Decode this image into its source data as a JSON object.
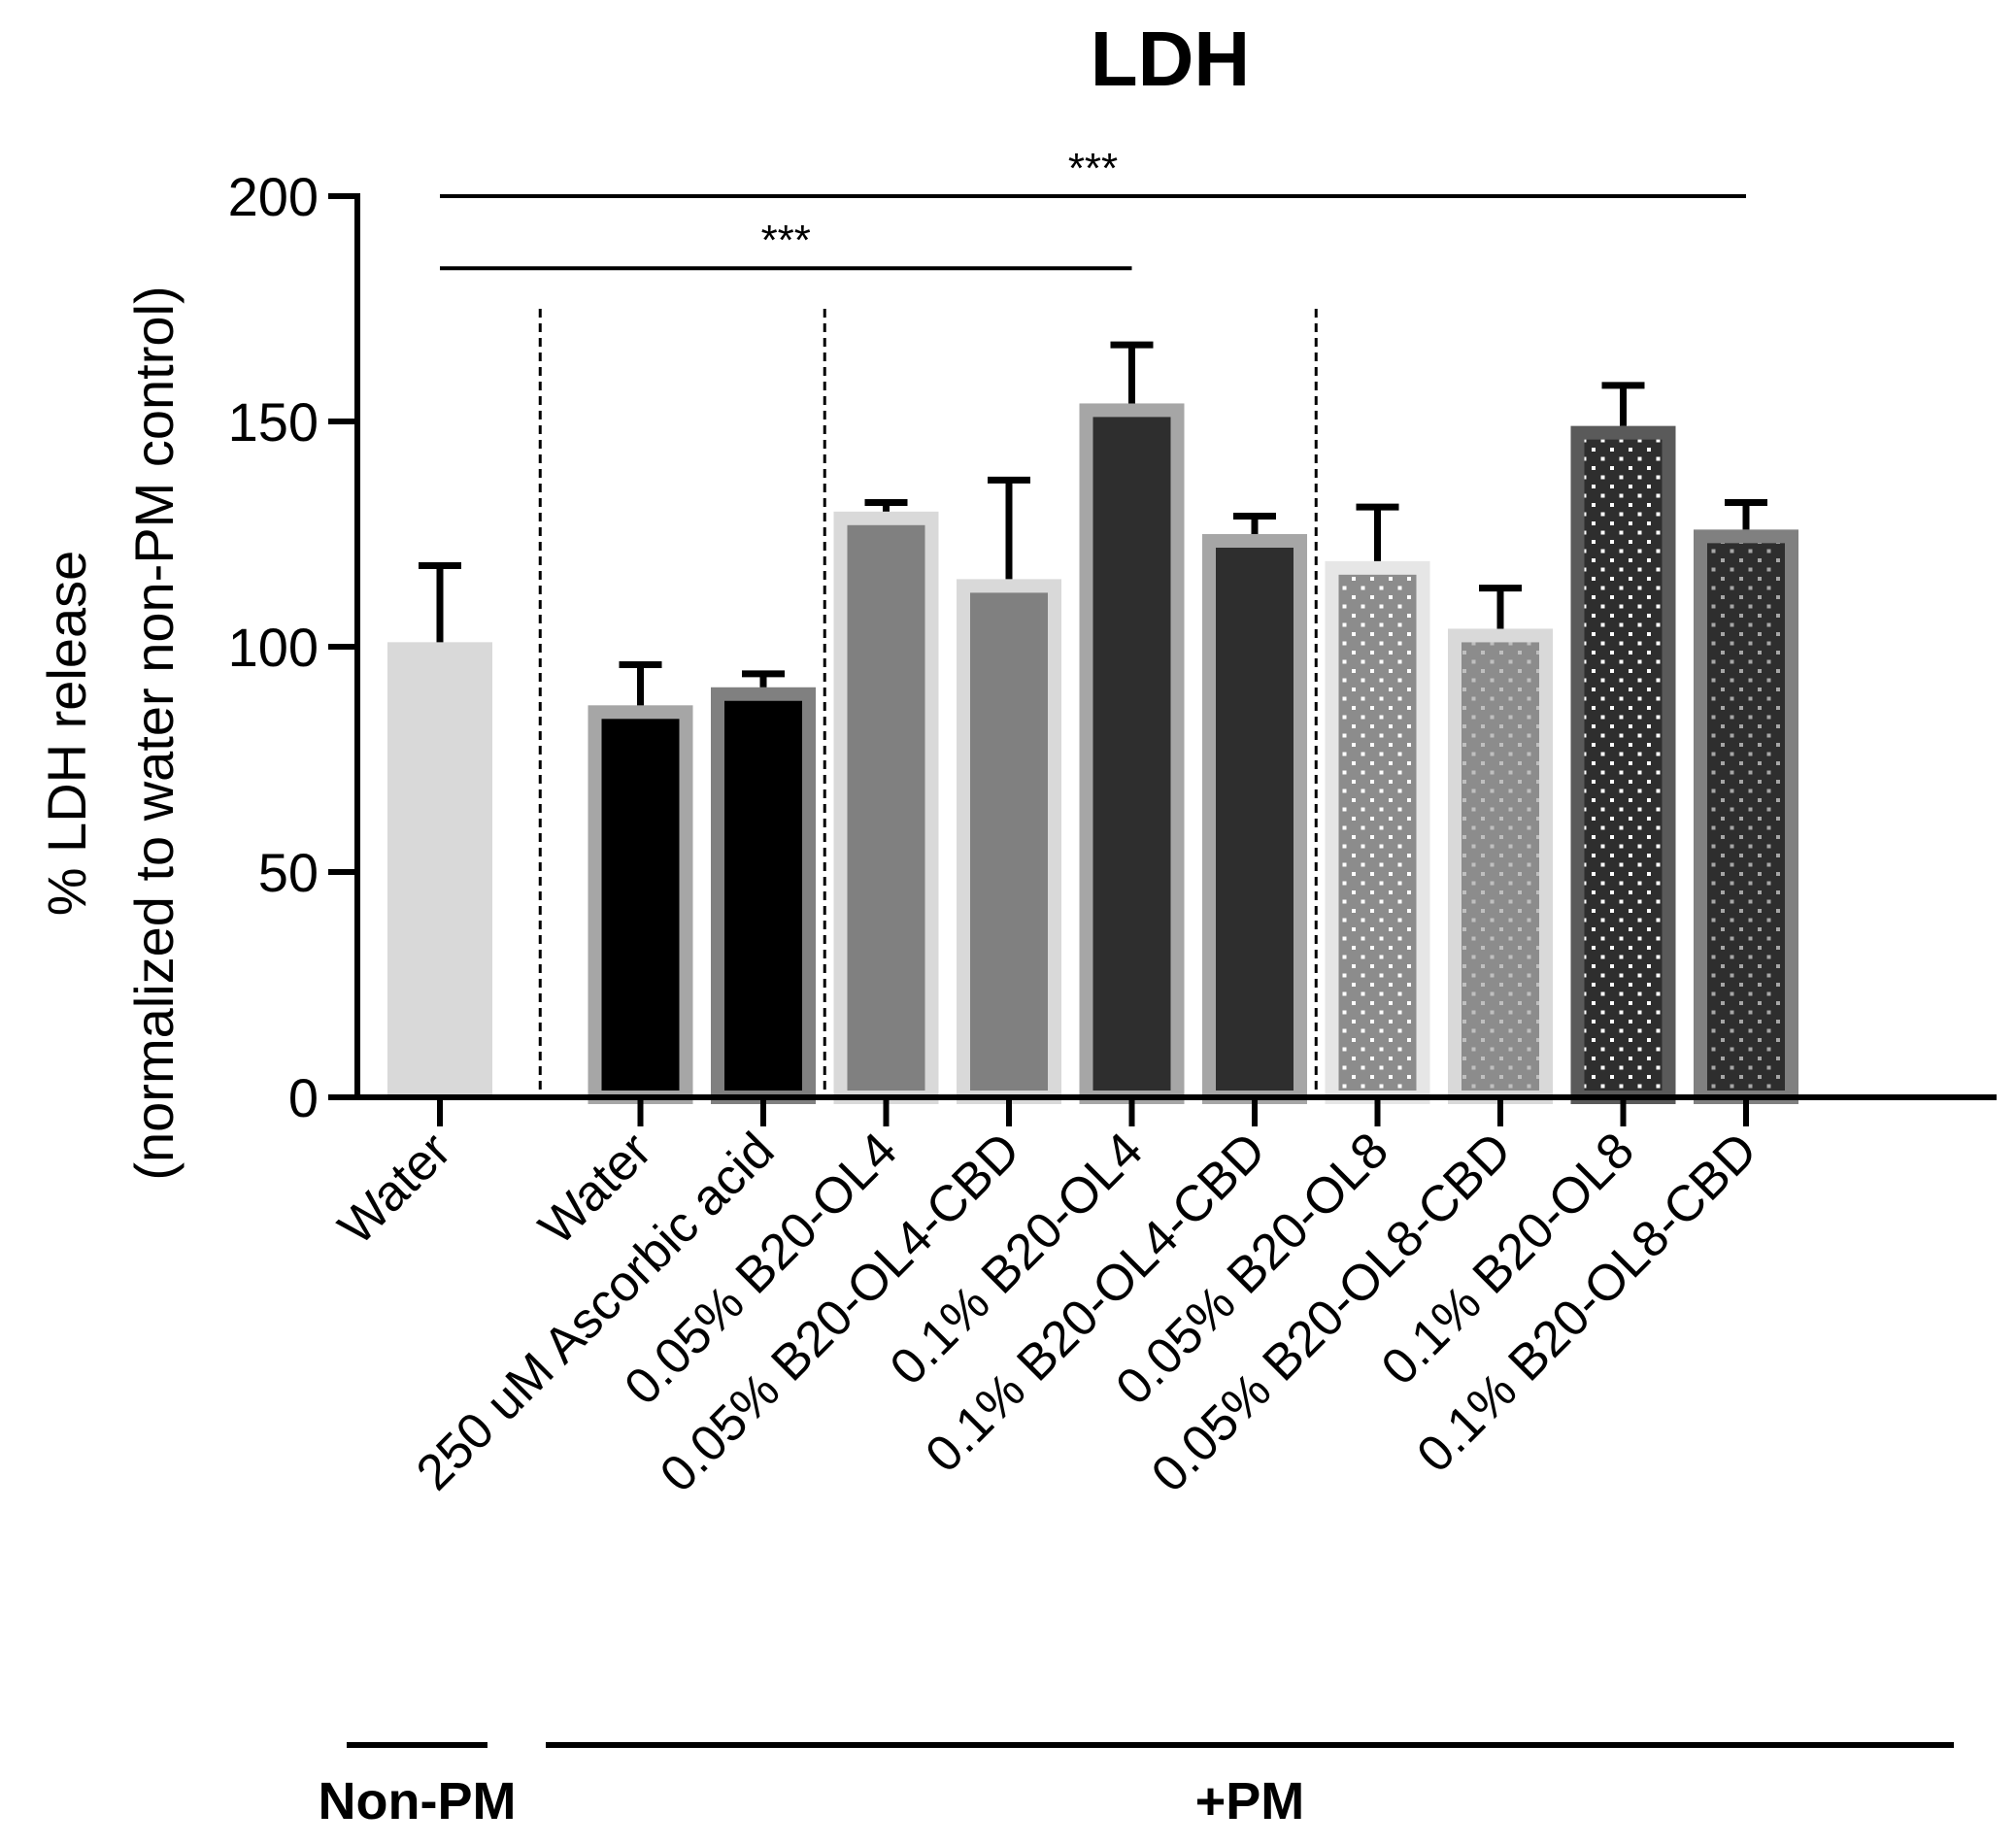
{
  "chart_data": {
    "type": "bar",
    "title": "LDH",
    "ylabel_line1": "% LDH release",
    "ylabel_line2": "(normalized to water non-PM control)",
    "xlabel": "",
    "ylim": [
      0,
      200
    ],
    "yticks": [
      0,
      50,
      100,
      150,
      200
    ],
    "categories": [
      "Water",
      "Water",
      "250 uM Ascorbic acid",
      "0.05% B20-OL4",
      "0.05% B20-OL4-CBD",
      "0.1% B20-OL4",
      "0.1% B20-OL4-CBD",
      "0.05% B20-OL8",
      "0.05% B20-OL8-CBD",
      "0.1% B20-OL8",
      "0.1% B20-OL8-CBD"
    ],
    "values": [
      101,
      87,
      91,
      130,
      115,
      154,
      125,
      119,
      104,
      149,
      126
    ],
    "errors": [
      17,
      9,
      3,
      2,
      22,
      13,
      4,
      12,
      9,
      9,
      6
    ],
    "bar_styles": [
      {
        "fill": "#d9d9d9",
        "border": "#d9d9d9",
        "pattern": "none",
        "dot": ""
      },
      {
        "fill": "#000000",
        "border": "#a6a6a6",
        "pattern": "none",
        "dot": ""
      },
      {
        "fill": "#000000",
        "border": "#808080",
        "pattern": "none",
        "dot": ""
      },
      {
        "fill": "#808080",
        "border": "#d9d9d9",
        "pattern": "none",
        "dot": ""
      },
      {
        "fill": "#808080",
        "border": "#d9d9d9",
        "pattern": "none",
        "dot": ""
      },
      {
        "fill": "#2e2e2e",
        "border": "#a6a6a6",
        "pattern": "none",
        "dot": ""
      },
      {
        "fill": "#2e2e2e",
        "border": "#a6a6a6",
        "pattern": "none",
        "dot": ""
      },
      {
        "fill": "#8c8c8c",
        "border": "#e6e6e6",
        "pattern": "dots",
        "dot": "#ffffff"
      },
      {
        "fill": "#8c8c8c",
        "border": "#d9d9d9",
        "pattern": "dots",
        "dot": "#bfbfbf"
      },
      {
        "fill": "#2e2e2e",
        "border": "#5a5a5a",
        "pattern": "dots",
        "dot": "#ffffff"
      },
      {
        "fill": "#2e2e2e",
        "border": "#808080",
        "pattern": "dots",
        "dot": "#a6a6a6"
      }
    ],
    "significance": [
      {
        "from": 0,
        "to": 10,
        "label": "***",
        "y_value": 200
      },
      {
        "from": 0,
        "to": 5,
        "label": "***",
        "y_value": 184
      }
    ],
    "group_separators_after": [
      0,
      2,
      6
    ],
    "groups": [
      {
        "label": "Non-PM",
        "from": 0,
        "to": 0
      },
      {
        "label": "+PM",
        "from": 1,
        "to": 10
      }
    ]
  }
}
